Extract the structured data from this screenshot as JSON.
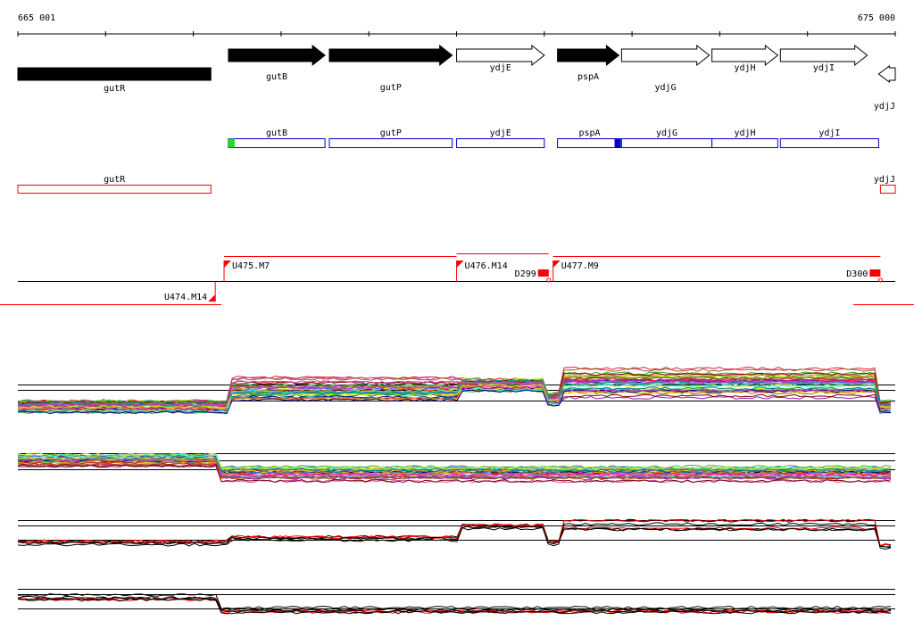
{
  "ruler": {
    "start_label": "665 001",
    "end_label": "675 000",
    "start_pos": 665001,
    "end_pos": 675000
  },
  "genes_track": [
    {
      "name": "gutR",
      "start": 665001,
      "end": 667201,
      "strand": "-",
      "fill": "#000000"
    },
    {
      "name": "gutB",
      "start": 667401,
      "end": 668501,
      "strand": "+",
      "fill": "#000000"
    },
    {
      "name": "gutP",
      "start": 668551,
      "end": 669951,
      "strand": "+",
      "fill": "#000000"
    },
    {
      "name": "ydjE",
      "start": 670001,
      "end": 671001,
      "strand": "+",
      "fill": "#ffffff"
    },
    {
      "name": "pspA",
      "start": 671151,
      "end": 671851,
      "strand": "+",
      "fill": "#000000"
    },
    {
      "name": "ydjG",
      "start": 671881,
      "end": 672881,
      "strand": "+",
      "fill": "#ffffff"
    },
    {
      "name": "ydjH",
      "start": 672911,
      "end": 673661,
      "strand": "+",
      "fill": "#ffffff"
    },
    {
      "name": "ydjI",
      "start": 673691,
      "end": 674681,
      "strand": "+",
      "fill": "#ffffff"
    },
    {
      "name": "ydjJ",
      "start": 674811,
      "end": 675000,
      "strand": "-",
      "fill": "#ffffff"
    }
  ],
  "plus_boxes": [
    {
      "name": "gutB",
      "start": 667401,
      "end": 668501
    },
    {
      "name": "gutP",
      "start": 668551,
      "end": 669951
    },
    {
      "name": "ydjE",
      "start": 670001,
      "end": 671001
    },
    {
      "name": "pspA",
      "start": 671151,
      "end": 671881
    },
    {
      "name": "ydjG",
      "start": 671881,
      "end": 672911
    },
    {
      "name": "ydjH",
      "start": 672911,
      "end": 673661
    },
    {
      "name": "ydjI",
      "start": 673691,
      "end": 674811
    }
  ],
  "plus_marks": [
    {
      "pos": 667401,
      "color": "#22dd22"
    },
    {
      "pos": 671801,
      "color": "#0000cc"
    }
  ],
  "minus_boxes": [
    {
      "name": "gutR",
      "start": 665001,
      "end": 667201
    },
    {
      "name": "ydjJ",
      "start": 674831,
      "end": 675000
    }
  ],
  "transcripts": [
    {
      "label": "U475.M7",
      "start": 667351,
      "end": 670001,
      "strand": "+"
    },
    {
      "label": "U476.M14",
      "start": 670001,
      "end": 671051,
      "strand": "+"
    },
    {
      "label": "D299",
      "start": 670801,
      "end": 671051,
      "strand": "+"
    },
    {
      "label": "U477.M9",
      "start": 671101,
      "end": 674831,
      "strand": "+"
    },
    {
      "label": "D300",
      "start": 674401,
      "end": 674831,
      "strand": "+"
    },
    {
      "label": "U474.M14",
      "start": 665001,
      "end": 667251,
      "strand": "-"
    }
  ],
  "colors": {
    "minus_strand": "#ff0000",
    "plus_strand": "#0000cc",
    "transcript_line": "#ff0000"
  }
}
